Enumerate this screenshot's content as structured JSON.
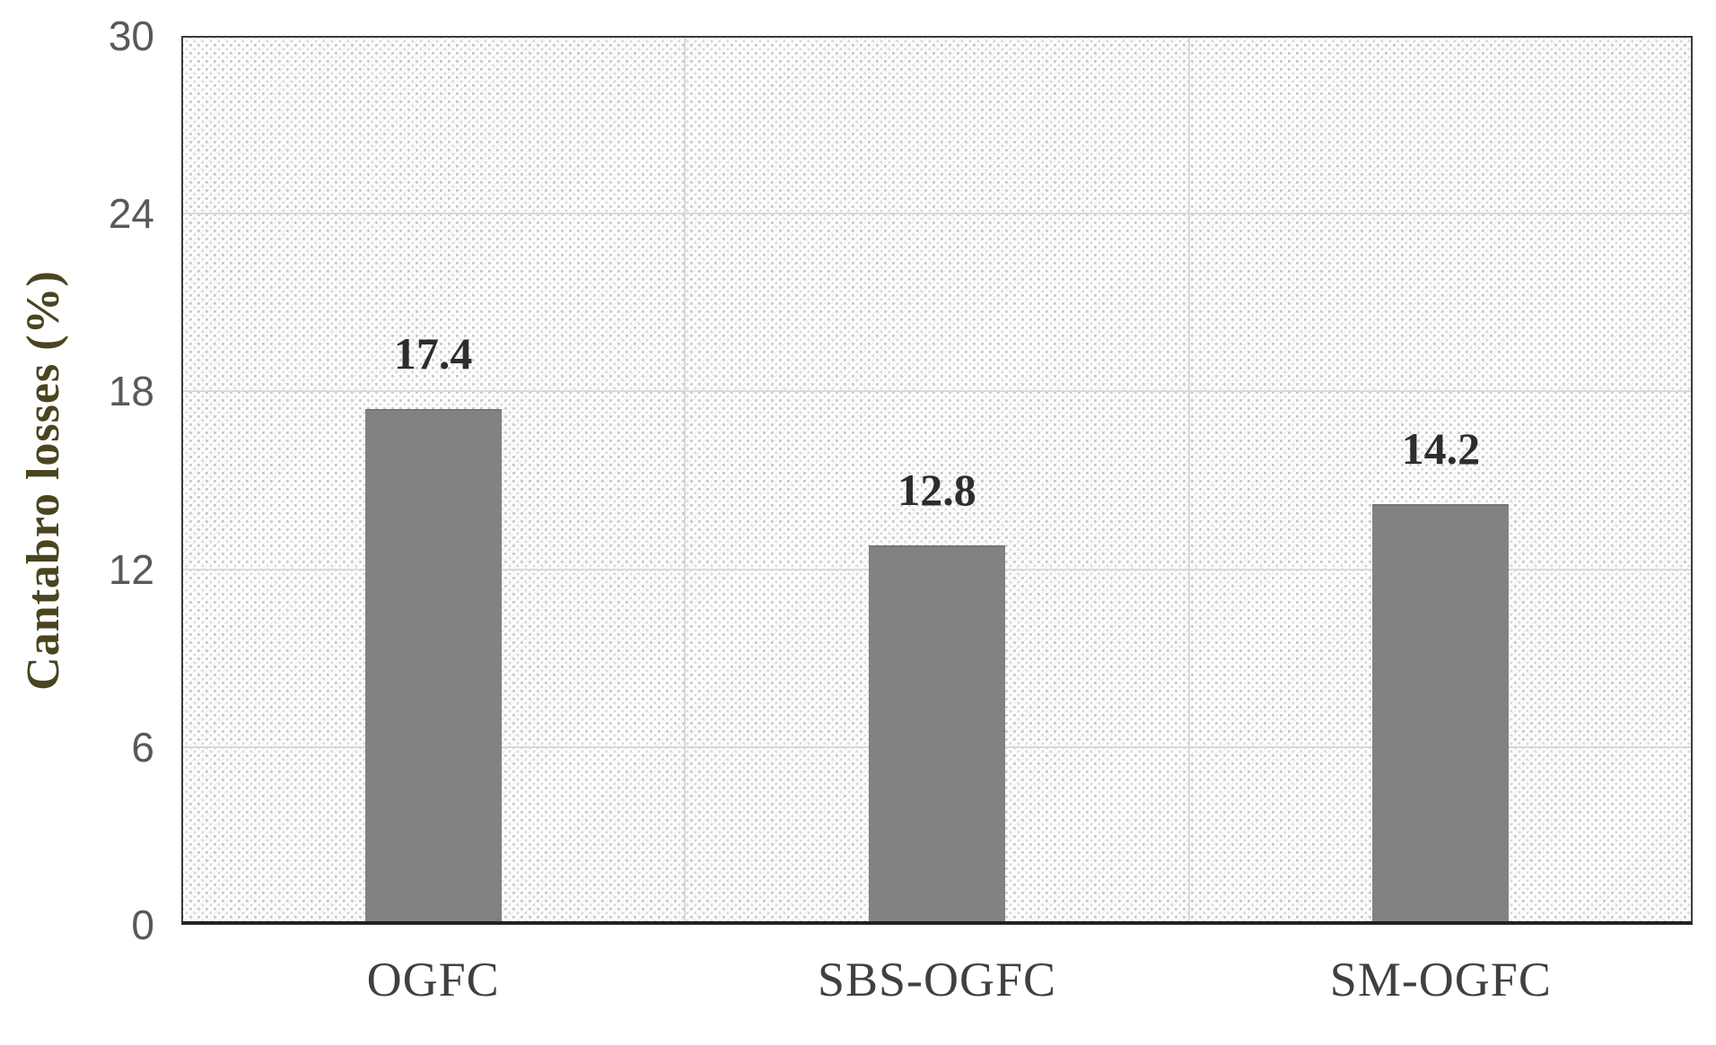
{
  "figure": {
    "y_axis_title": "Cantabro losses (%)"
  },
  "colors": {
    "bar_fill": "#828282",
    "axis_tick_text": "#595959",
    "category_text": "#404040",
    "data_label_text": "#2d2d2d",
    "y_axis_title_text": "#4a4420",
    "gridline": "#d9d9d9",
    "plot_border": "#3a3a3a",
    "x_axis_line": "#222222",
    "hatch_dot": "#c6c6c6"
  },
  "chart_data": {
    "type": "bar",
    "categories": [
      "OGFC",
      "SBS-OGFC",
      "SM-OGFC"
    ],
    "values": [
      17.4,
      12.8,
      14.2
    ],
    "data_labels": [
      "17.4",
      "12.8",
      "14.2"
    ],
    "title": "",
    "xlabel": "",
    "ylabel": "Cantabro losses (%)",
    "ylim": [
      0,
      30
    ],
    "yticks": [
      0,
      6,
      12,
      18,
      24,
      30
    ],
    "grid": {
      "horizontal_major": true,
      "vertical_category_separators": true
    },
    "legend": "none",
    "bar_color": "#828282",
    "plot_area_fill": "white with light gray diagonal dotted hatch pattern"
  }
}
